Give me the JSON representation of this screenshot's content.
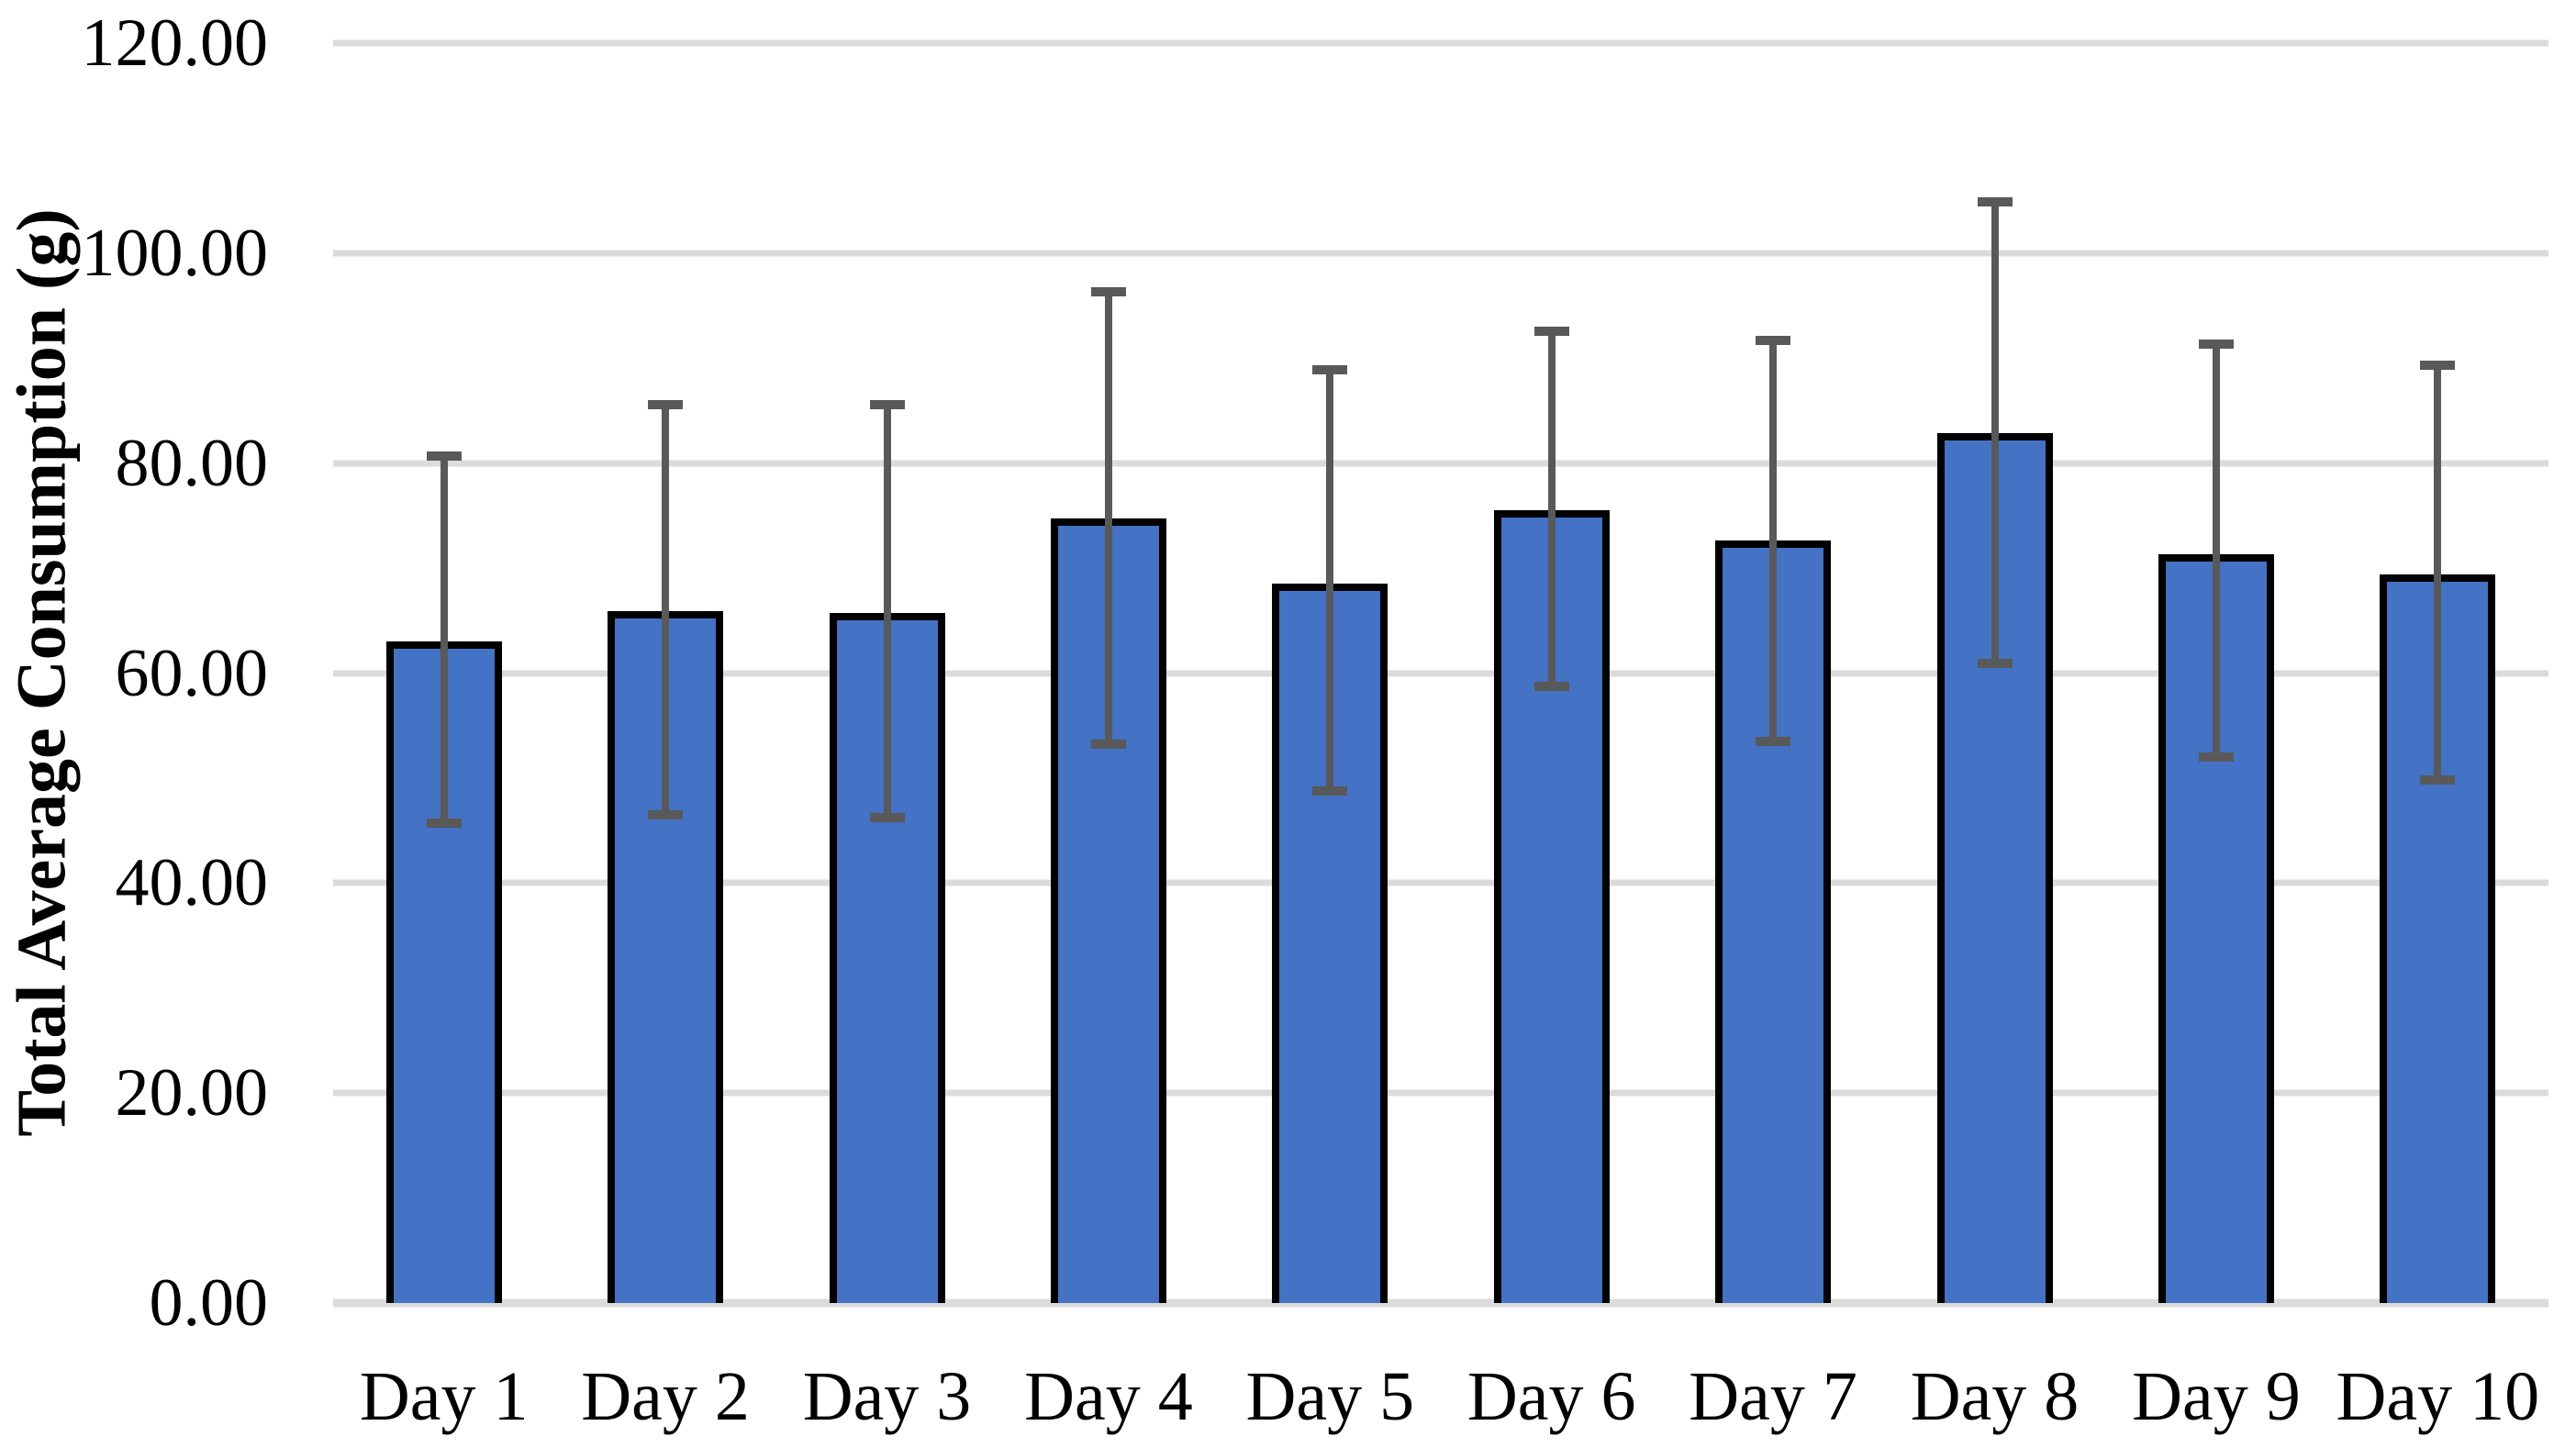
{
  "chart_data": {
    "type": "bar",
    "title": "",
    "xlabel": "",
    "ylabel": "Total Average Consumption (g)",
    "categories": [
      "Day 1",
      "Day 2",
      "Day 3",
      "Day 4",
      "Day 5",
      "Day 6",
      "Day 7",
      "Day 8",
      "Day 9",
      "Day 10"
    ],
    "series": [
      {
        "name": "Total Average Consumption (g)",
        "values": [
          63.0,
          65.9,
          65.7,
          74.7,
          68.5,
          75.5,
          72.6,
          82.9,
          71.3,
          69.4
        ],
        "error_whisker_top": [
          80.7,
          85.6,
          85.6,
          96.3,
          88.9,
          92.6,
          91.7,
          104.9,
          91.3,
          89.3
        ],
        "error_whisker_bottom": [
          45.7,
          46.5,
          46.2,
          53.2,
          48.8,
          58.7,
          53.5,
          60.9,
          52.0,
          49.8
        ]
      }
    ],
    "ylim": [
      0,
      120
    ],
    "ytick_step": 20,
    "ytick_labels": [
      "0.00",
      "20.00",
      "40.00",
      "60.00",
      "80.00",
      "100.00",
      "120.00"
    ],
    "grid": "horizontal",
    "legend_position": "none",
    "colors": {
      "bar_fill": "#4472C4",
      "bar_border": "#000000",
      "error_bar": "#595959",
      "gridline": "#DBDBDB",
      "label_text": "#000000",
      "background": "#FFFFFF"
    }
  }
}
